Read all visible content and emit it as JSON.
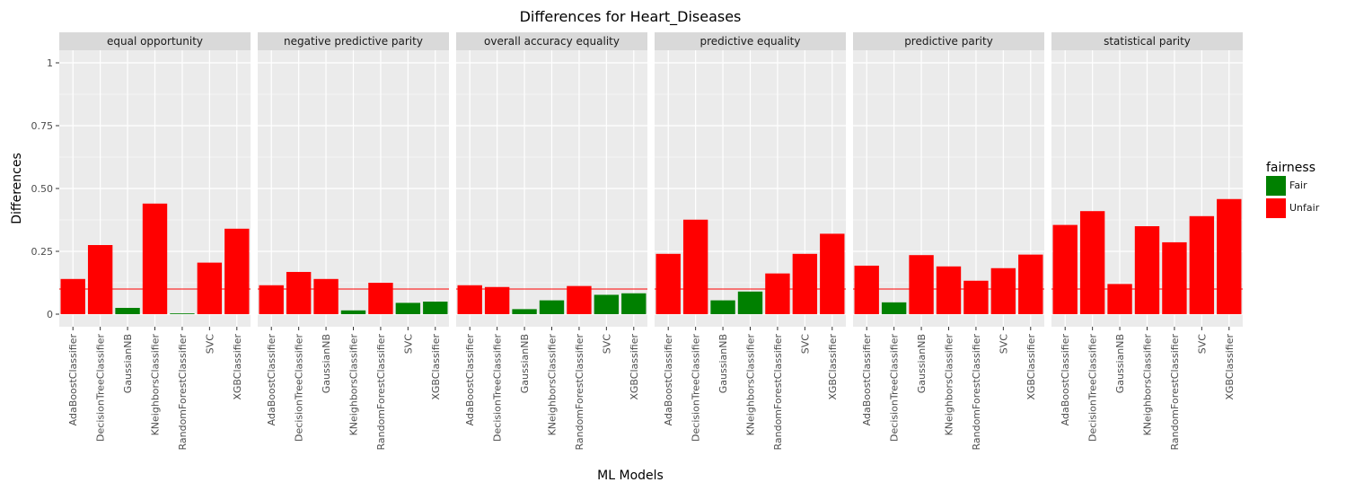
{
  "chart_data": {
    "type": "bar",
    "title": "Differences for Heart_Diseases",
    "xlabel": "ML Models",
    "ylabel": "Differences",
    "ylim": [
      -0.05,
      1.05
    ],
    "yticks": [
      0,
      0.25,
      0.5,
      0.75,
      1
    ],
    "ytick_labels": [
      "0",
      "0.25",
      "0.50",
      "0.75",
      "1"
    ],
    "threshold": 0.1,
    "threshold_color": "#ff0000",
    "grid": true,
    "legend_position": "right",
    "categories": [
      "AdaBoostClassifier",
      "DecisionTreeClassifier",
      "GaussianNB",
      "KNeighborsClassifier",
      "RandomForestClassifier",
      "SVC",
      "XGBClassifier"
    ],
    "legend": {
      "title": "fairness",
      "entries": [
        {
          "label": "Fair",
          "color": "#008000"
        },
        {
          "label": "Unfair",
          "color": "#ff0000"
        }
      ]
    },
    "panels": [
      {
        "name": "equal opportunity",
        "values": [
          0.14,
          0.275,
          0.025,
          0.44,
          0.003,
          0.205,
          0.34
        ],
        "fairness": [
          "Unfair",
          "Unfair",
          "Fair",
          "Unfair",
          "Fair",
          "Unfair",
          "Unfair"
        ]
      },
      {
        "name": "negative predictive parity",
        "values": [
          0.115,
          0.168,
          0.14,
          0.015,
          0.125,
          0.045,
          0.05
        ],
        "fairness": [
          "Unfair",
          "Unfair",
          "Unfair",
          "Fair",
          "Unfair",
          "Fair",
          "Fair"
        ]
      },
      {
        "name": "overall accuracy equality",
        "values": [
          0.115,
          0.108,
          0.02,
          0.055,
          0.112,
          0.077,
          0.083
        ],
        "fairness": [
          "Unfair",
          "Unfair",
          "Fair",
          "Fair",
          "Unfair",
          "Fair",
          "Fair"
        ]
      },
      {
        "name": "predictive equality",
        "values": [
          0.24,
          0.376,
          0.055,
          0.09,
          0.162,
          0.24,
          0.32
        ],
        "fairness": [
          "Unfair",
          "Unfair",
          "Fair",
          "Fair",
          "Unfair",
          "Unfair",
          "Unfair"
        ]
      },
      {
        "name": "predictive parity",
        "values": [
          0.193,
          0.047,
          0.235,
          0.19,
          0.133,
          0.183,
          0.237
        ],
        "fairness": [
          "Unfair",
          "Fair",
          "Unfair",
          "Unfair",
          "Unfair",
          "Unfair",
          "Unfair"
        ]
      },
      {
        "name": "statistical parity",
        "values": [
          0.355,
          0.41,
          0.12,
          0.35,
          0.286,
          0.39,
          0.458
        ],
        "fairness": [
          "Unfair",
          "Unfair",
          "Unfair",
          "Unfair",
          "Unfair",
          "Unfair",
          "Unfair"
        ]
      }
    ]
  }
}
